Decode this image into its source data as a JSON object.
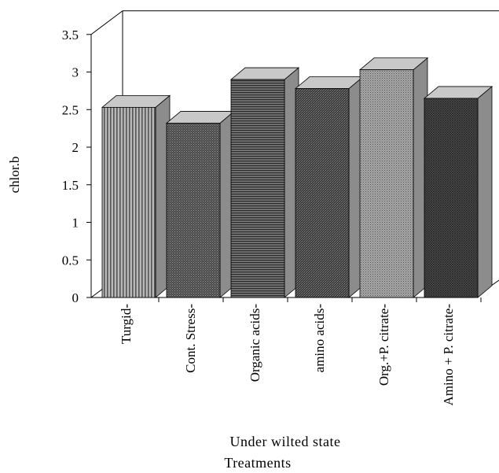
{
  "chart_data": {
    "type": "bar",
    "subtype": "3d-column",
    "categories": [
      "Turgid",
      "Cont. Stress",
      "Organic acids",
      "amino acids",
      "Org.+P. citrate",
      "Amino + P. citrate"
    ],
    "values": [
      2.53,
      2.32,
      2.9,
      2.78,
      3.03,
      2.65
    ],
    "ylabel": "chlor.b",
    "xlabel_line1": "Under wilted state",
    "xlabel_line2": "Treatments",
    "ylim": [
      0,
      3.5
    ],
    "yticks": [
      0,
      0.5,
      1,
      1.5,
      2,
      2.5,
      3,
      3.5
    ],
    "ytick_labels": [
      "0",
      "0.5",
      "1",
      "1.5",
      "2",
      "2.5",
      "3",
      "3.5"
    ],
    "grid": false,
    "legend": "none",
    "colors": {
      "side": "#8c8c8c",
      "top": "#c8c8c8",
      "front_fills": [
        "vertical-stripes",
        "fine-dark",
        "horizontal-stripes",
        "dense-dark",
        "light-dots",
        "dark-crosshatch"
      ]
    }
  }
}
